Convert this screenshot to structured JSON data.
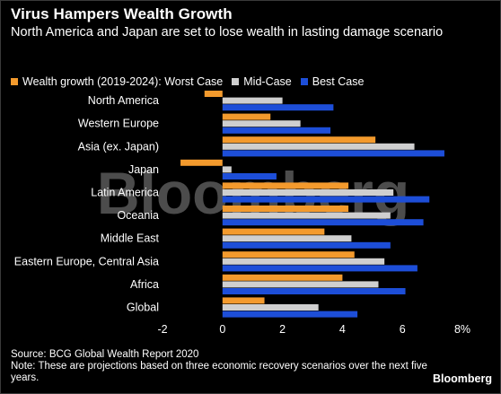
{
  "title": "Virus Hampers Wealth Growth",
  "subtitle": "North America and Japan are set to lose wealth in lasting damage scenario",
  "watermark": "Bloomberg",
  "source": "Source: BCG Global Wealth Report 2020",
  "note": "Note: These are projections based on three economic recovery scenarios over the next five years.",
  "brand": "Bloomberg",
  "colors": {
    "worst": "#f39a2d",
    "mid": "#cfcfcf",
    "best": "#1d4ed8",
    "background": "#000000"
  },
  "chart_data": {
    "type": "bar",
    "orientation": "horizontal",
    "categories": [
      "North America",
      "Western Europe",
      "Asia (ex. Japan)",
      "Japan",
      "Latin America",
      "Oceania",
      "Middle East",
      "Eastern Europe, Central Asia",
      "Africa",
      "Global"
    ],
    "series": [
      {
        "name": "Wealth growth (2019-2024): Worst Case",
        "values": [
          -0.6,
          1.6,
          5.1,
          -1.4,
          4.2,
          4.2,
          3.4,
          4.4,
          4.0,
          1.4
        ]
      },
      {
        "name": "Mid-Case",
        "values": [
          2.0,
          2.6,
          6.4,
          0.3,
          5.7,
          5.6,
          4.3,
          5.4,
          5.2,
          3.2
        ]
      },
      {
        "name": "Best Case",
        "values": [
          3.7,
          3.6,
          7.4,
          1.8,
          6.9,
          6.7,
          5.6,
          6.5,
          6.1,
          4.5
        ]
      }
    ],
    "xlim": [
      -2,
      8
    ],
    "xticks": [
      -2,
      0,
      2,
      4,
      6,
      8
    ],
    "xtick_labels": [
      "-2",
      "0",
      "2",
      "4",
      "6",
      "8%"
    ],
    "grid": false,
    "legend_position": "top-left"
  }
}
